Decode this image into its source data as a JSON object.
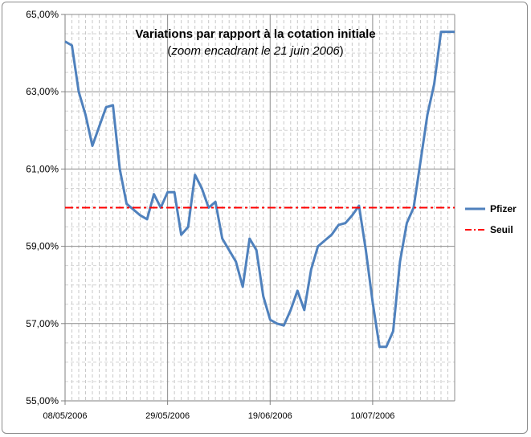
{
  "chart_data": {
    "type": "line",
    "title": "Variations par rapport à la cotation initiale",
    "subtitle_italic": "zoom encadrant le 21 juin 2006",
    "subtitle_prefix": "(",
    "subtitle_suffix": ")",
    "xlabel": "",
    "ylabel": "",
    "x_range": [
      0,
      57
    ],
    "ylim": [
      55,
      65
    ],
    "y_ticks": [
      {
        "value": 55,
        "label": "55,00%"
      },
      {
        "value": 57,
        "label": "57,00%"
      },
      {
        "value": 59,
        "label": "59,00%"
      },
      {
        "value": 61,
        "label": "61,00%"
      },
      {
        "value": 63,
        "label": "63,00%"
      },
      {
        "value": 65,
        "label": "65,00%"
      }
    ],
    "x_ticks": [
      {
        "value": 0,
        "label": "08/05/2006"
      },
      {
        "value": 15,
        "label": "29/05/2006"
      },
      {
        "value": 30,
        "label": "19/06/2006"
      },
      {
        "value": 45,
        "label": "10/07/2006"
      }
    ],
    "series": [
      {
        "name": "Pfizer",
        "color": "#4f81bd",
        "style": "solid",
        "x": [
          0,
          1,
          2,
          3,
          4,
          5,
          6,
          7,
          8,
          9,
          10,
          11,
          12,
          13,
          14,
          15,
          16,
          17,
          18,
          19,
          20,
          21,
          22,
          23,
          24,
          25,
          26,
          27,
          28,
          29,
          30,
          31,
          32,
          33,
          34,
          35,
          36,
          37,
          38,
          39,
          40,
          41,
          42,
          43,
          44,
          45,
          46,
          47,
          48,
          49,
          50,
          51,
          52,
          53,
          54,
          55,
          56,
          57
        ],
        "y": [
          64.3,
          64.2,
          63.0,
          62.4,
          61.6,
          62.1,
          62.6,
          62.65,
          61.0,
          60.1,
          59.95,
          59.8,
          59.7,
          60.35,
          60.0,
          60.4,
          60.4,
          59.3,
          59.5,
          60.85,
          60.5,
          60.0,
          60.15,
          59.2,
          58.9,
          58.6,
          57.95,
          59.2,
          58.9,
          57.7,
          57.1,
          57.0,
          56.95,
          57.35,
          57.85,
          57.35,
          58.4,
          59.0,
          59.15,
          59.3,
          59.55,
          59.6,
          59.8,
          60.05,
          58.9,
          57.55,
          56.4,
          56.4,
          56.8,
          58.6,
          59.6,
          60.0,
          61.2,
          62.4,
          63.2,
          64.55,
          64.55,
          64.55
        ]
      },
      {
        "name": "Seuil",
        "color": "#ff0000",
        "style": "dash-dot",
        "x": [
          0,
          57
        ],
        "y": [
          60.0,
          60.0
        ]
      }
    ],
    "grid": true,
    "legend_position": "right"
  }
}
